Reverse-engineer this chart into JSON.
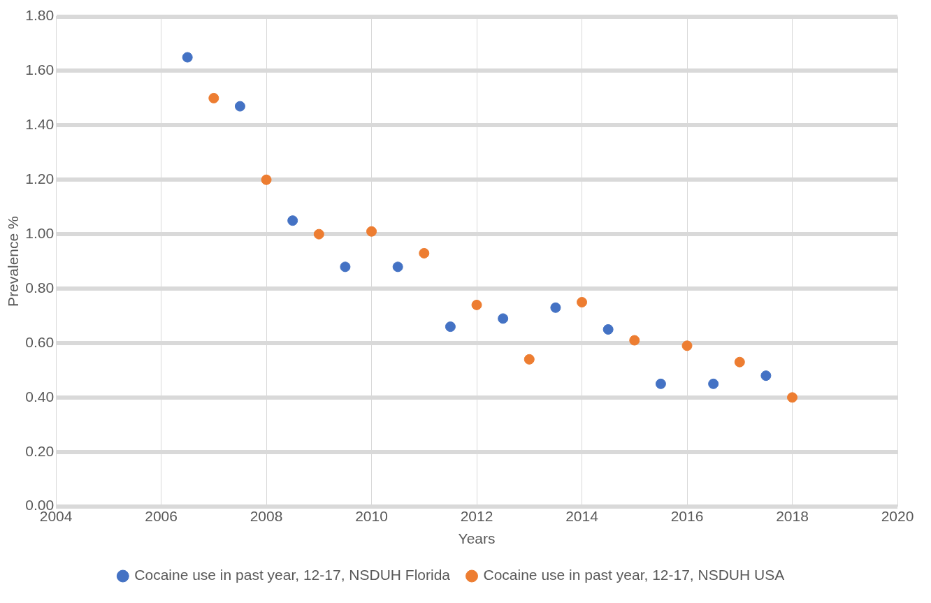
{
  "chart_data": {
    "type": "scatter",
    "xlabel": "Years",
    "ylabel": "Prevalence %",
    "series": [
      {
        "name": "Cocaine use in past year, 12-17, NSDUH Florida",
        "color": "#4472c4",
        "x": [
          2006.5,
          2007.5,
          2008.5,
          2009.5,
          2010.5,
          2011.5,
          2012.5,
          2013.5,
          2014.5,
          2015.5,
          2016.5,
          2017.5
        ],
        "values": [
          1.65,
          1.47,
          1.05,
          0.88,
          0.88,
          0.66,
          0.69,
          0.73,
          0.65,
          0.45,
          0.45,
          0.48
        ]
      },
      {
        "name": "Cocaine use in past year, 12-17, NSDUH USA",
        "color": "#ed7d31",
        "x": [
          2007,
          2008,
          2009,
          2010,
          2011,
          2012,
          2013,
          2014,
          2015,
          2016,
          2017,
          2018
        ],
        "values": [
          1.5,
          1.2,
          1.0,
          1.01,
          0.93,
          0.74,
          0.54,
          0.75,
          0.61,
          0.59,
          0.53,
          0.4
        ]
      }
    ],
    "xlim": [
      2004,
      2020
    ],
    "xticks": [
      2004,
      2006,
      2008,
      2010,
      2012,
      2014,
      2016,
      2018,
      2020
    ],
    "ylim": [
      0,
      1.8
    ],
    "yticks": [
      {
        "value": 0,
        "label": "0.00"
      },
      {
        "value": 0.2,
        "label": "0.20"
      },
      {
        "value": 0.4,
        "label": "0.40"
      },
      {
        "value": 0.6,
        "label": "0.60"
      },
      {
        "value": 0.8,
        "label": "0.80"
      },
      {
        "value": 1,
        "label": "1.00"
      },
      {
        "value": 1.2,
        "label": "1.20"
      },
      {
        "value": 1.4,
        "label": "1.40"
      },
      {
        "value": 1.6,
        "label": "1.60"
      },
      {
        "value": 1.8,
        "label": "1.80"
      }
    ],
    "grid": true,
    "legend": "bottom",
    "marker": "circle"
  }
}
